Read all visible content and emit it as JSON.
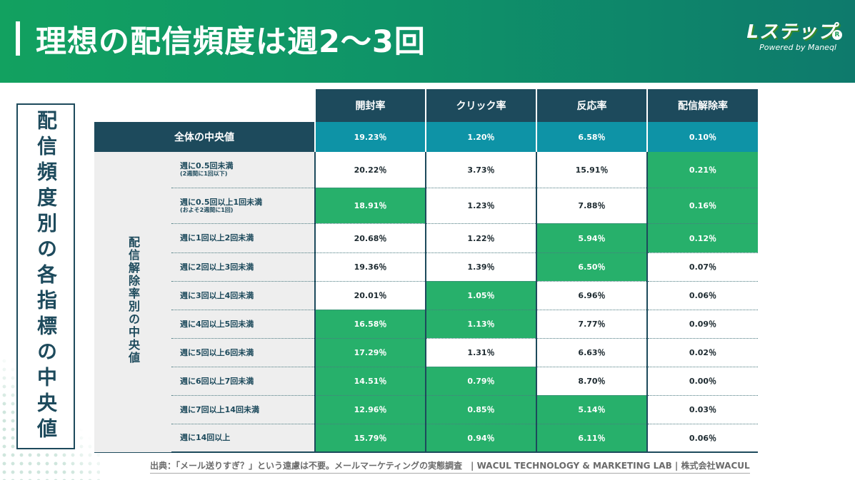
{
  "header": {
    "title": "理想の配信頻度は週2〜3回"
  },
  "logo": {
    "main": "Lステップ",
    "reg": "R",
    "sub": "Powered by Maneql"
  },
  "side_label": "配信頻度別の各指標の中央値",
  "table": {
    "metrics": [
      "開封率",
      "クリック率",
      "反応率",
      "配信解除率"
    ],
    "overall": {
      "label": "全体の中央値",
      "values": [
        "19.23％",
        "1.20％",
        "6.58％",
        "0.10％"
      ]
    },
    "group_label": "配信解除率別の中央値",
    "rows": [
      {
        "label": "週に0.5回未満",
        "sub": "(2週間に1回以下)",
        "values": [
          "20.22％",
          "3.73％",
          "15.91％",
          "0.21％"
        ],
        "highlight": [
          false,
          false,
          false,
          true
        ]
      },
      {
        "label": "週に0.5回以上1回未満",
        "sub": "(およそ2週間に1回)",
        "values": [
          "18.91％",
          "1.23％",
          "7.88％",
          "0.16％"
        ],
        "highlight": [
          true,
          false,
          false,
          true
        ]
      },
      {
        "label": "週に1回以上2回未満",
        "sub": "",
        "values": [
          "20.68％",
          "1.22％",
          "5.94％",
          "0.12％"
        ],
        "highlight": [
          false,
          false,
          true,
          true
        ]
      },
      {
        "label": "週に2回以上3回未満",
        "sub": "",
        "values": [
          "19.36％",
          "1.39％",
          "6.50％",
          "0.07％"
        ],
        "highlight": [
          false,
          false,
          true,
          false
        ]
      },
      {
        "label": "週に3回以上4回未満",
        "sub": "",
        "values": [
          "20.01％",
          "1.05％",
          "6.96％",
          "0.06％"
        ],
        "highlight": [
          false,
          true,
          false,
          false
        ]
      },
      {
        "label": "週に4回以上5回未満",
        "sub": "",
        "values": [
          "16.58％",
          "1.13％",
          "7.77％",
          "0.09％"
        ],
        "highlight": [
          true,
          true,
          false,
          false
        ]
      },
      {
        "label": "週に5回以上6回未満",
        "sub": "",
        "values": [
          "17.29％",
          "1.31％",
          "6.63％",
          "0.02％"
        ],
        "highlight": [
          true,
          false,
          false,
          false
        ]
      },
      {
        "label": "週に6回以上7回未満",
        "sub": "",
        "values": [
          "14.51％",
          "0.79％",
          "8.70％",
          "0.00％"
        ],
        "highlight": [
          true,
          true,
          false,
          false
        ]
      },
      {
        "label": "週に7回以上14回未満",
        "sub": "",
        "values": [
          "12.96％",
          "0.85％",
          "5.14％",
          "0.03％"
        ],
        "highlight": [
          true,
          true,
          true,
          false
        ]
      },
      {
        "label": "週に14回以上",
        "sub": "",
        "values": [
          "15.79％",
          "0.94％",
          "6.11％",
          "0.06％"
        ],
        "highlight": [
          true,
          true,
          true,
          false
        ]
      }
    ]
  },
  "source": "出典：「メール送りすぎ？」という遠慮は不要。メールマーケティングの実態調査　| WACUL TECHNOLOGY & MARKETING LAB | 株式会社WACUL",
  "colors": {
    "header_green": "#12a160",
    "navy": "#1d4a5c",
    "teal": "#0e93a6",
    "highlight_green": "#27b06b"
  }
}
